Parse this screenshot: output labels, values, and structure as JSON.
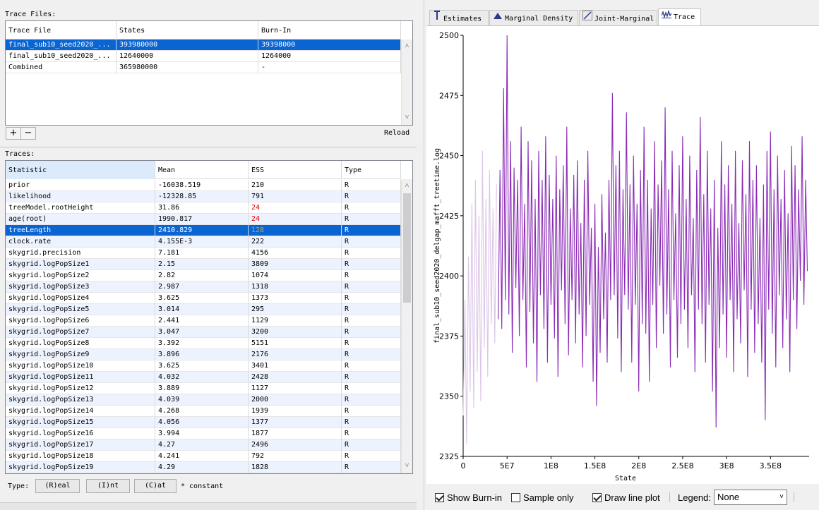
{
  "trace_files": {
    "label": "Trace Files:",
    "columns": [
      "Trace File",
      "States",
      "Burn-In"
    ],
    "rows": [
      [
        "final_sub10_seed2020_...",
        "393980000",
        "39398000"
      ],
      [
        "final_sub10_seed2020_...",
        "12640000",
        "1264000"
      ],
      [
        "Combined",
        "365980000",
        "-"
      ]
    ],
    "add_label": "+",
    "remove_label": "−",
    "reload_label": "Reload"
  },
  "traces": {
    "label": "Traces:",
    "columns": [
      "Statistic",
      "Mean",
      "ESS",
      "Type"
    ],
    "rows": [
      [
        "prior",
        "-16038.519",
        "210",
        "R"
      ],
      [
        "likelihood",
        "-12328.85",
        "791",
        "R"
      ],
      [
        "treeModel.rootHeight",
        "31.86",
        "24",
        "R"
      ],
      [
        "age(root)",
        "1990.817",
        "24",
        "R"
      ],
      [
        "treeLength",
        "2410.829",
        "128",
        "R"
      ],
      [
        "clock.rate",
        "4.155E-3",
        "222",
        "R"
      ],
      [
        "skygrid.precision",
        "7.181",
        "4156",
        "R"
      ],
      [
        "skygrid.logPopSize1",
        "2.15",
        "3809",
        "R"
      ],
      [
        "skygrid.logPopSize2",
        "2.82",
        "1074",
        "R"
      ],
      [
        "skygrid.logPopSize3",
        "2.987",
        "1318",
        "R"
      ],
      [
        "skygrid.logPopSize4",
        "3.625",
        "1373",
        "R"
      ],
      [
        "skygrid.logPopSize5",
        "3.014",
        "295",
        "R"
      ],
      [
        "skygrid.logPopSize6",
        "2.441",
        "1129",
        "R"
      ],
      [
        "skygrid.logPopSize7",
        "3.047",
        "3200",
        "R"
      ],
      [
        "skygrid.logPopSize8",
        "3.392",
        "5151",
        "R"
      ],
      [
        "skygrid.logPopSize9",
        "3.896",
        "2176",
        "R"
      ],
      [
        "skygrid.logPopSize10",
        "3.625",
        "3401",
        "R"
      ],
      [
        "skygrid.logPopSize11",
        "4.032",
        "2428",
        "R"
      ],
      [
        "skygrid.logPopSize12",
        "3.889",
        "1127",
        "R"
      ],
      [
        "skygrid.logPopSize13",
        "4.039",
        "2000",
        "R"
      ],
      [
        "skygrid.logPopSize14",
        "4.268",
        "1939",
        "R"
      ],
      [
        "skygrid.logPopSize15",
        "4.056",
        "1377",
        "R"
      ],
      [
        "skygrid.logPopSize16",
        "3.994",
        "1877",
        "R"
      ],
      [
        "skygrid.logPopSize17",
        "4.27",
        "2496",
        "R"
      ],
      [
        "skygrid.logPopSize18",
        "4.241",
        "792",
        "R"
      ],
      [
        "skygrid.logPopSize19",
        "4.29",
        "1828",
        "R"
      ]
    ],
    "selected_index": 4,
    "ess_colors": {
      "low": "#e00000",
      "medium": "#d9a400",
      "normal": "#000000"
    }
  },
  "type_bar": {
    "label": "Type:",
    "buttons": [
      "(R)eal",
      "(I)nt",
      "(C)at"
    ],
    "constant_label": "* constant"
  },
  "tabs": [
    {
      "label": "Estimates",
      "icon": "mean-bar-icon"
    },
    {
      "label": "Marginal Density",
      "icon": "density-triangle-icon"
    },
    {
      "label": "Joint-Marginal",
      "icon": "scatter-slash-icon"
    },
    {
      "label": "Trace",
      "icon": "trace-line-icon"
    }
  ],
  "active_tab": 3,
  "controls": {
    "show_burnin": "Show Burn-in",
    "sample_only": "Sample only",
    "draw_line_plot": "Draw line plot",
    "legend_label": "Legend:",
    "legend_value": "None",
    "show_burnin_checked": true,
    "sample_only_checked": false,
    "draw_line_plot_checked": true
  },
  "colors": {
    "selection": "#0a64d2",
    "alt_row": "#edf3fe",
    "trace_main": "#8a2bb5",
    "trace_burnin": "#dcc6e8"
  },
  "chart_data": {
    "type": "line",
    "title": "",
    "xlabel": "State",
    "ylabel": "final_sub10_seed2020_delgap_mafft_treetime.log",
    "xlim": [
      0,
      393980000
    ],
    "ylim": [
      2325,
      2500
    ],
    "x_ticks": [
      "0",
      "5E7",
      "1E8",
      "1.5E8",
      "2E8",
      "2.5E8",
      "3E8",
      "3.5E8"
    ],
    "x_tick_values": [
      0,
      50000000,
      100000000,
      150000000,
      200000000,
      250000000,
      300000000,
      350000000
    ],
    "y_ticks": [
      "2325",
      "2350",
      "2375",
      "2400",
      "2425",
      "2450",
      "2475",
      "2500"
    ],
    "y_tick_values": [
      2325,
      2350,
      2375,
      2400,
      2425,
      2450,
      2475,
      2500
    ],
    "grid": false,
    "burnin_end": 39398000,
    "series": [
      {
        "values": [
          [
            0,
            2342
          ],
          [
            2000000,
            2390
          ],
          [
            4000000,
            2330
          ],
          [
            6000000,
            2408
          ],
          [
            8000000,
            2352
          ],
          [
            10000000,
            2430
          ],
          [
            12000000,
            2345
          ],
          [
            14000000,
            2440
          ],
          [
            16000000,
            2360
          ],
          [
            18000000,
            2425
          ],
          [
            20000000,
            2348
          ],
          [
            22000000,
            2452
          ],
          [
            24000000,
            2370
          ],
          [
            26000000,
            2432
          ],
          [
            28000000,
            2358
          ],
          [
            30000000,
            2444
          ],
          [
            32000000,
            2380
          ],
          [
            34000000,
            2428
          ],
          [
            36000000,
            2372
          ],
          [
            38000000,
            2438
          ]
        ]
      },
      {
        "values": [
          [
            40000000,
            2382
          ],
          [
            42000000,
            2444
          ],
          [
            44000000,
            2378
          ],
          [
            46000000,
            2478
          ],
          [
            48000000,
            2390
          ],
          [
            50000000,
            2500
          ],
          [
            52000000,
            2384
          ],
          [
            54000000,
            2456
          ],
          [
            56000000,
            2368
          ],
          [
            58000000,
            2445
          ],
          [
            60000000,
            2395
          ],
          [
            62000000,
            2440
          ],
          [
            64000000,
            2375
          ],
          [
            66000000,
            2462
          ],
          [
            68000000,
            2390
          ],
          [
            70000000,
            2430
          ],
          [
            72000000,
            2362
          ],
          [
            74000000,
            2456
          ],
          [
            76000000,
            2385
          ],
          [
            78000000,
            2448
          ],
          [
            80000000,
            2372
          ],
          [
            82000000,
            2432
          ],
          [
            84000000,
            2356
          ],
          [
            86000000,
            2452
          ],
          [
            88000000,
            2392
          ],
          [
            90000000,
            2440
          ],
          [
            92000000,
            2378
          ],
          [
            94000000,
            2458
          ],
          [
            96000000,
            2364
          ],
          [
            98000000,
            2442
          ],
          [
            100000000,
            2388
          ],
          [
            102000000,
            2432
          ],
          [
            104000000,
            2374
          ],
          [
            106000000,
            2450
          ],
          [
            108000000,
            2358
          ],
          [
            110000000,
            2436
          ],
          [
            112000000,
            2394
          ],
          [
            114000000,
            2446
          ],
          [
            116000000,
            2380
          ],
          [
            118000000,
            2462
          ],
          [
            120000000,
            2367
          ],
          [
            122000000,
            2428
          ],
          [
            124000000,
            2390
          ],
          [
            126000000,
            2442
          ],
          [
            128000000,
            2372
          ],
          [
            130000000,
            2448
          ],
          [
            132000000,
            2384
          ],
          [
            134000000,
            2422
          ],
          [
            136000000,
            2362
          ],
          [
            138000000,
            2440
          ],
          [
            140000000,
            2375
          ],
          [
            142000000,
            2452
          ],
          [
            144000000,
            2388
          ],
          [
            146000000,
            2420
          ],
          [
            148000000,
            2356
          ],
          [
            150000000,
            2430
          ],
          [
            152000000,
            2346
          ],
          [
            154000000,
            2412
          ],
          [
            156000000,
            2368
          ],
          [
            158000000,
            2434
          ],
          [
            160000000,
            2382
          ],
          [
            162000000,
            2418
          ],
          [
            164000000,
            2364
          ],
          [
            166000000,
            2440
          ],
          [
            168000000,
            2390
          ],
          [
            170000000,
            2476
          ],
          [
            172000000,
            2392
          ],
          [
            174000000,
            2446
          ],
          [
            176000000,
            2374
          ],
          [
            178000000,
            2452
          ],
          [
            180000000,
            2360
          ],
          [
            182000000,
            2436
          ],
          [
            184000000,
            2392
          ],
          [
            186000000,
            2468
          ],
          [
            188000000,
            2386
          ],
          [
            190000000,
            2438
          ],
          [
            192000000,
            2364
          ],
          [
            194000000,
            2450
          ],
          [
            196000000,
            2388
          ],
          [
            198000000,
            2430
          ],
          [
            200000000,
            2352
          ],
          [
            202000000,
            2444
          ],
          [
            204000000,
            2380
          ],
          [
            206000000,
            2462
          ],
          [
            208000000,
            2376
          ],
          [
            210000000,
            2440
          ],
          [
            212000000,
            2356
          ],
          [
            214000000,
            2428
          ],
          [
            216000000,
            2388
          ],
          [
            218000000,
            2456
          ],
          [
            220000000,
            2370
          ],
          [
            222000000,
            2438
          ],
          [
            224000000,
            2396
          ],
          [
            226000000,
            2448
          ],
          [
            228000000,
            2376
          ],
          [
            230000000,
            2470
          ],
          [
            232000000,
            2384
          ],
          [
            234000000,
            2436
          ],
          [
            236000000,
            2362
          ],
          [
            238000000,
            2452
          ],
          [
            240000000,
            2390
          ],
          [
            242000000,
            2426
          ],
          [
            244000000,
            2366
          ],
          [
            246000000,
            2446
          ],
          [
            248000000,
            2380
          ],
          [
            250000000,
            2458
          ],
          [
            252000000,
            2386
          ],
          [
            254000000,
            2432
          ],
          [
            256000000,
            2370
          ],
          [
            258000000,
            2450
          ],
          [
            260000000,
            2392
          ],
          [
            262000000,
            2424
          ],
          [
            264000000,
            2360
          ],
          [
            266000000,
            2444
          ],
          [
            268000000,
            2386
          ],
          [
            270000000,
            2466
          ],
          [
            272000000,
            2380
          ],
          [
            274000000,
            2434
          ],
          [
            276000000,
            2364
          ],
          [
            278000000,
            2452
          ],
          [
            280000000,
            2388
          ],
          [
            282000000,
            2428
          ],
          [
            284000000,
            2352
          ],
          [
            286000000,
            2440
          ],
          [
            288000000,
            2337
          ],
          [
            290000000,
            2420
          ],
          [
            292000000,
            2370
          ],
          [
            294000000,
            2456
          ],
          [
            296000000,
            2384
          ],
          [
            298000000,
            2438
          ],
          [
            300000000,
            2366
          ],
          [
            302000000,
            2446
          ],
          [
            304000000,
            2390
          ],
          [
            306000000,
            2430
          ],
          [
            308000000,
            2360
          ],
          [
            310000000,
            2452
          ],
          [
            312000000,
            2382
          ],
          [
            314000000,
            2422
          ],
          [
            316000000,
            2372
          ],
          [
            318000000,
            2448
          ],
          [
            320000000,
            2394
          ],
          [
            322000000,
            2434
          ],
          [
            324000000,
            2358
          ],
          [
            326000000,
            2456
          ],
          [
            328000000,
            2386
          ],
          [
            330000000,
            2440
          ],
          [
            332000000,
            2368
          ],
          [
            334000000,
            2446
          ],
          [
            336000000,
            2380
          ],
          [
            338000000,
            2424
          ],
          [
            340000000,
            2364
          ],
          [
            342000000,
            2438
          ],
          [
            344000000,
            2340
          ],
          [
            346000000,
            2452
          ],
          [
            348000000,
            2386
          ],
          [
            350000000,
            2460
          ],
          [
            352000000,
            2376
          ],
          [
            354000000,
            2436
          ],
          [
            356000000,
            2362
          ],
          [
            358000000,
            2450
          ],
          [
            360000000,
            2392
          ],
          [
            362000000,
            2432
          ],
          [
            364000000,
            2370
          ],
          [
            366000000,
            2444
          ],
          [
            368000000,
            2382
          ],
          [
            370000000,
            2426
          ],
          [
            372000000,
            2360
          ],
          [
            374000000,
            2454
          ],
          [
            376000000,
            2390
          ],
          [
            378000000,
            2446
          ],
          [
            380000000,
            2378
          ],
          [
            382000000,
            2436
          ],
          [
            384000000,
            2398
          ],
          [
            386000000,
            2458
          ],
          [
            388000000,
            2388
          ],
          [
            390000000,
            2440
          ],
          [
            392000000,
            2402
          ]
        ]
      }
    ]
  }
}
